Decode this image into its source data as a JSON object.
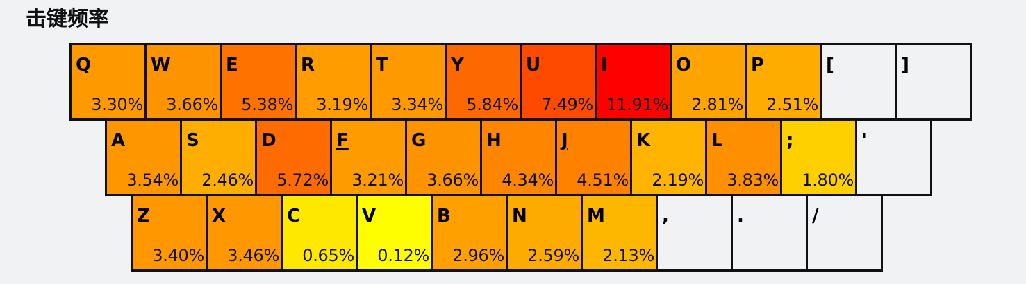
{
  "title": "击键频率",
  "keyboard": {
    "rows": [
      [
        {
          "letter": "Q",
          "pct": "3.30%",
          "color": "#fe9a00"
        },
        {
          "letter": "W",
          "pct": "3.66%",
          "color": "#fe9300"
        },
        {
          "letter": "E",
          "pct": "5.38%",
          "color": "#fe7200"
        },
        {
          "letter": "R",
          "pct": "3.19%",
          "color": "#fe9c00"
        },
        {
          "letter": "T",
          "pct": "3.34%",
          "color": "#fe9900"
        },
        {
          "letter": "Y",
          "pct": "5.84%",
          "color": "#fe6800"
        },
        {
          "letter": "U",
          "pct": "7.49%",
          "color": "#fe4a00"
        },
        {
          "letter": "I",
          "pct": "11.91%",
          "color": "#fe0000"
        },
        {
          "letter": "O",
          "pct": "2.81%",
          "color": "#fea400"
        },
        {
          "letter": "P",
          "pct": "2.51%",
          "color": "#fead00"
        },
        {
          "letter": "[",
          "pct": "",
          "color": "#f0f2f4"
        },
        {
          "letter": "]",
          "pct": "",
          "color": "#f0f2f4"
        }
      ],
      [
        {
          "letter": "A",
          "pct": "3.54%",
          "color": "#fe9600"
        },
        {
          "letter": "S",
          "pct": "2.46%",
          "color": "#feae00"
        },
        {
          "letter": "D",
          "pct": "5.72%",
          "color": "#fe6b00"
        },
        {
          "letter": "F",
          "pct": "3.21%",
          "color": "#fe9b00",
          "underline": true
        },
        {
          "letter": "G",
          "pct": "3.66%",
          "color": "#fe9300"
        },
        {
          "letter": "H",
          "pct": "4.34%",
          "color": "#fe8500"
        },
        {
          "letter": "J",
          "pct": "4.51%",
          "color": "#fe8200",
          "underline": true
        },
        {
          "letter": "K",
          "pct": "2.19%",
          "color": "#feb400"
        },
        {
          "letter": "L",
          "pct": "3.83%",
          "color": "#fe9000"
        },
        {
          "letter": ";",
          "pct": "1.80%",
          "color": "#fed000"
        },
        {
          "letter": "'",
          "pct": "",
          "color": "#f0f2f4"
        }
      ],
      [
        {
          "letter": "Z",
          "pct": "3.40%",
          "color": "#fe9700"
        },
        {
          "letter": "X",
          "pct": "3.46%",
          "color": "#fe9700"
        },
        {
          "letter": "C",
          "pct": "0.65%",
          "color": "#fee800"
        },
        {
          "letter": "V",
          "pct": "0.12%",
          "color": "#fefe00"
        },
        {
          "letter": "B",
          "pct": "2.96%",
          "color": "#fea100"
        },
        {
          "letter": "N",
          "pct": "2.59%",
          "color": "#feab00"
        },
        {
          "letter": "M",
          "pct": "2.13%",
          "color": "#feb700"
        },
        {
          "letter": ",",
          "pct": "",
          "color": "#f0f2f4"
        },
        {
          "letter": ".",
          "pct": "",
          "color": "#f0f2f4"
        },
        {
          "letter": "/",
          "pct": "",
          "color": "#f0f2f4"
        }
      ]
    ]
  }
}
